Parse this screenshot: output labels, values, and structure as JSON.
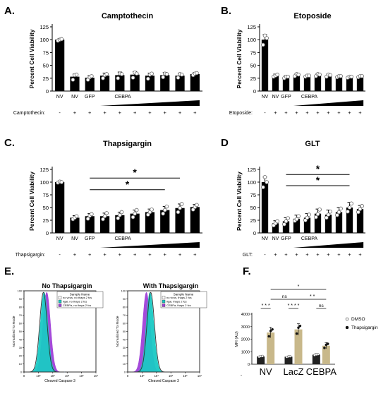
{
  "panel_letters": [
    "A.",
    "B.",
    "C.",
    "D",
    "E.",
    "F."
  ],
  "common": {
    "ylabel": "Percent Cell Viability",
    "yticks": [
      "0",
      "25",
      "50",
      "75",
      "100",
      "125"
    ],
    "xlabels": [
      "NV",
      "NV",
      "GFP",
      "",
      "",
      "",
      "",
      "",
      "",
      ""
    ],
    "cebpa_label": "CEBPA",
    "signs": [
      "-",
      "+",
      "+",
      "+",
      "+",
      "+",
      "+",
      "+",
      "+",
      "+"
    ]
  },
  "chart_data": [
    {
      "panel": "A.",
      "type": "bar",
      "title": "Camptothecin",
      "treatment_label": "Camptothecin:",
      "ylabel": "Percent Cell Viability",
      "ylim": [
        0,
        125
      ],
      "categories": [
        "NV",
        "NV",
        "GFP",
        "CEBPA",
        "CEBPA",
        "CEBPA",
        "CEBPA",
        "CEBPA",
        "CEBPA",
        "CEBPA"
      ],
      "treatment": [
        "-",
        "+",
        "+",
        "+",
        "+",
        "+",
        "+",
        "+",
        "+",
        "+"
      ],
      "values": [
        100,
        28,
        26,
        30,
        31,
        32,
        30,
        31,
        30,
        33
      ],
      "errors": [
        2,
        5,
        4,
        5,
        6,
        6,
        5,
        5,
        5,
        3
      ],
      "points": [
        [
          98,
          100,
          101
        ],
        [
          22,
          31,
          32
        ],
        [
          22,
          27,
          29
        ],
        [
          25,
          31,
          33
        ],
        [
          25,
          34,
          33
        ],
        [
          26,
          36,
          34
        ],
        [
          24,
          32,
          34
        ],
        [
          27,
          34,
          33
        ],
        [
          26,
          33,
          32
        ],
        [
          31,
          34,
          35
        ]
      ],
      "significance": []
    },
    {
      "panel": "B.",
      "type": "bar",
      "title": "Etoposide",
      "treatment_label": "Etoposide:",
      "ylabel": "Percent Cell Viability",
      "ylim": [
        0,
        125
      ],
      "categories": [
        "NV",
        "NV",
        "GFP",
        "CEBPA",
        "CEBPA",
        "CEBPA",
        "CEBPA",
        "CEBPA",
        "CEBPA",
        "CEBPA"
      ],
      "treatment": [
        "-",
        "+",
        "+",
        "+",
        "+",
        "+",
        "+",
        "+",
        "+",
        "+"
      ],
      "values": [
        100,
        30,
        27,
        31,
        29,
        31,
        30,
        28,
        27,
        28
      ],
      "errors": [
        10,
        3,
        3,
        3,
        2,
        3,
        3,
        2,
        2,
        2
      ],
      "points": [
        [
          90,
          108,
          103
        ],
        [
          28,
          30,
          32
        ],
        [
          25,
          28,
          28
        ],
        [
          29,
          33,
          32
        ],
        [
          28,
          30,
          30
        ],
        [
          29,
          33,
          32
        ],
        [
          28,
          32,
          31
        ],
        [
          27,
          29,
          29
        ],
        [
          26,
          28,
          28
        ],
        [
          27,
          29,
          29
        ]
      ],
      "significance": []
    },
    {
      "panel": "C.",
      "type": "bar",
      "title": "Thapsigargin",
      "treatment_label": "Thapsigargin:",
      "ylabel": "Percent Cell Viability",
      "ylim": [
        0,
        125
      ],
      "categories": [
        "NV",
        "NV",
        "GFP",
        "CEBPA",
        "CEBPA",
        "CEBPA",
        "CEBPA",
        "CEBPA",
        "CEBPA",
        "CEBPA"
      ],
      "treatment": [
        "-",
        "+",
        "+",
        "+",
        "+",
        "+",
        "+",
        "+",
        "+",
        "+"
      ],
      "values": [
        100,
        30,
        33,
        33,
        35,
        38,
        41,
        45,
        49,
        51
      ],
      "errors": [
        2,
        4,
        5,
        6,
        6,
        7,
        6,
        7,
        8,
        5
      ],
      "points": [
        [
          99,
          101,
          100
        ],
        [
          27,
          30,
          33
        ],
        [
          28,
          34,
          37
        ],
        [
          27,
          33,
          39
        ],
        [
          29,
          35,
          41
        ],
        [
          31,
          38,
          45
        ],
        [
          36,
          41,
          46
        ],
        [
          38,
          45,
          52
        ],
        [
          41,
          49,
          57
        ],
        [
          46,
          51,
          55
        ]
      ],
      "significance": [
        {
          "label": "*",
          "from": 2,
          "to": 8,
          "y": 108
        },
        {
          "label": "*",
          "from": 2,
          "to": 7,
          "y": 85
        }
      ]
    },
    {
      "panel": "D",
      "type": "bar",
      "title": "GLT",
      "treatment_label": "GLT:",
      "ylabel": "Percent Cell Viability",
      "ylim": [
        0,
        125
      ],
      "categories": [
        "NV",
        "NV",
        "GFP",
        "CEBPA",
        "CEBPA",
        "CEBPA",
        "CEBPA",
        "CEBPA",
        "CEBPA",
        "CEBPA"
      ],
      "treatment": [
        "-",
        "+",
        "+",
        "+",
        "+",
        "+",
        "+",
        "+",
        "+",
        "+"
      ],
      "values": [
        100,
        19,
        23,
        28,
        30,
        38,
        36,
        41,
        50,
        47
      ],
      "errors": [
        10,
        5,
        7,
        7,
        8,
        9,
        9,
        9,
        10,
        7
      ],
      "points": [
        [
          90,
          110,
          100
        ],
        [
          15,
          19,
          23
        ],
        [
          17,
          23,
          29
        ],
        [
          24,
          27,
          33
        ],
        [
          25,
          30,
          36
        ],
        [
          31,
          37,
          46
        ],
        [
          30,
          36,
          42
        ],
        [
          35,
          41,
          48
        ],
        [
          42,
          50,
          58
        ],
        [
          41,
          47,
          53
        ]
      ],
      "significance": [
        {
          "label": "*",
          "from": 2,
          "to": 8,
          "y": 115
        },
        {
          "label": "*",
          "from": 2,
          "to": 8,
          "y": 93
        }
      ]
    },
    {
      "panel": "E.",
      "type": "area",
      "title": "No Thapsigargin",
      "xlabel": "Cleaved Caspase 3",
      "ylabel": "Normalized To Mode",
      "ylim": [
        0,
        100
      ],
      "yticks": [
        "0",
        "10",
        "20",
        "30",
        "40",
        "50",
        "60",
        "70",
        "80",
        "90",
        "100"
      ],
      "xticks": [
        "0",
        "10³",
        "10⁴",
        "10⁵",
        "10⁶",
        "10⁷"
      ],
      "legend_header": "Sample Name",
      "series": [
        {
          "name": "no virus, no thaps 2 fcs",
          "color": "#6b6b6b",
          "peak": 3.35
        },
        {
          "name": "llgal, no thaps 2 fcs",
          "color": "#19c9c4",
          "peak": 3.4
        },
        {
          "name": "CEBPa, no thaps 2 fcs",
          "color": "#a040d8",
          "peak": 3.58
        }
      ]
    },
    {
      "panel": "E.",
      "type": "area",
      "title": "With Thapsigargin",
      "xlabel": "Cleaved Caspase 3",
      "ylabel": "Normalized To Mode",
      "ylim": [
        0,
        100
      ],
      "yticks": [
        "0",
        "10",
        "20",
        "30",
        "40",
        "50",
        "60",
        "70",
        "80",
        "90",
        "100"
      ],
      "xticks": [
        "0",
        "10³",
        "10⁴",
        "10⁵",
        "10⁶",
        "10⁷"
      ],
      "legend_header": "Sample Name",
      "series": [
        {
          "name": "no virus, thaps 2 fcs",
          "color": "#6b6b6b",
          "peak": 3.6
        },
        {
          "name": "llgal, thaps 2 fcs",
          "color": "#19c9c4",
          "peak": 3.55
        },
        {
          "name": "CEBPa, thaps 2 fcs",
          "color": "#a040d8",
          "peak": 3.3
        }
      ]
    },
    {
      "panel": "F.",
      "type": "bar",
      "ylabel": "MFI (AU)",
      "ylim": [
        0,
        4000
      ],
      "yticks": [
        "0",
        "1000",
        "2000",
        "3000",
        "4000"
      ],
      "categories": [
        "NV",
        "LacZ",
        "CEBPA"
      ],
      "series": [
        {
          "name": "DMSO",
          "color": "#222222",
          "values": [
            620,
            600,
            760
          ],
          "errors": [
            60,
            50,
            90
          ]
        },
        {
          "name": "Thapsigargin",
          "color": "#c8b88a",
          "values": [
            2530,
            2780,
            1480
          ],
          "errors": [
            420,
            460,
            250
          ]
        }
      ],
      "significance": [
        {
          "label": "* * *",
          "from": 0,
          "to": 1,
          "level": 1
        },
        {
          "label": "ns",
          "from": 1,
          "to": 3,
          "level": 2
        },
        {
          "label": "* * * *",
          "from": 2,
          "to": 3,
          "level": 1
        },
        {
          "label": "* *",
          "from": 3,
          "to": 5,
          "level": 2
        },
        {
          "label": "ns",
          "from": 4,
          "to": 5,
          "level": 1
        },
        {
          "label": "*",
          "from": 1,
          "to": 5,
          "level": 3
        }
      ]
    }
  ]
}
